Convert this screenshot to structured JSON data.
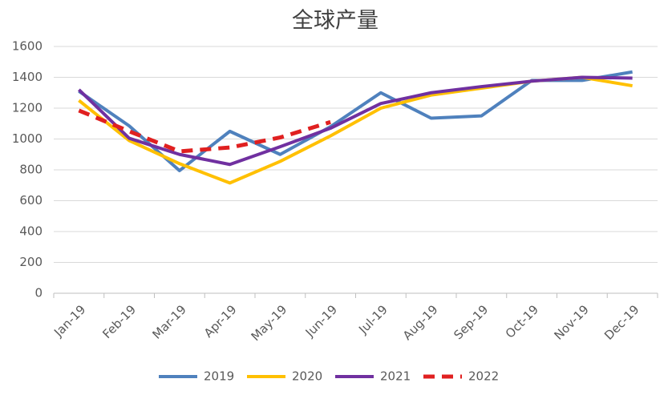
{
  "chart_data": {
    "type": "line",
    "title": "全球产量",
    "categories": [
      "Jan-19",
      "Feb-19",
      "Mar-19",
      "Apr-19",
      "May-19",
      "Jun-19",
      "Jul-19",
      "Aug-19",
      "Sep-19",
      "Oct-19",
      "Nov-19",
      "Dec-19"
    ],
    "series": [
      {
        "name": "2019",
        "color": "#4f81bd",
        "line_style": "solid",
        "values": [
          1310,
          1085,
          795,
          1050,
          900,
          1080,
          1300,
          1135,
          1150,
          1380,
          1380,
          1435
        ]
      },
      {
        "name": "2020",
        "color": "#ffc000",
        "line_style": "solid",
        "values": [
          1250,
          990,
          840,
          715,
          855,
          1020,
          1200,
          1285,
          1330,
          1375,
          1400,
          1345
        ]
      },
      {
        "name": "2021",
        "color": "#7030a0",
        "line_style": "solid",
        "values": [
          1320,
          1005,
          900,
          835,
          950,
          1070,
          1230,
          1300,
          1340,
          1375,
          1400,
          1395
        ]
      },
      {
        "name": "2022",
        "color": "#e02020",
        "line_style": "dashed",
        "values": [
          1185,
          1050,
          920,
          945,
          1010,
          1110,
          null,
          null,
          null,
          null,
          null,
          null
        ]
      }
    ],
    "ylim": [
      0,
      1600
    ],
    "yticks": [
      0,
      200,
      400,
      600,
      800,
      1000,
      1200,
      1400,
      1600
    ],
    "grid": true,
    "legend": "bottom"
  }
}
